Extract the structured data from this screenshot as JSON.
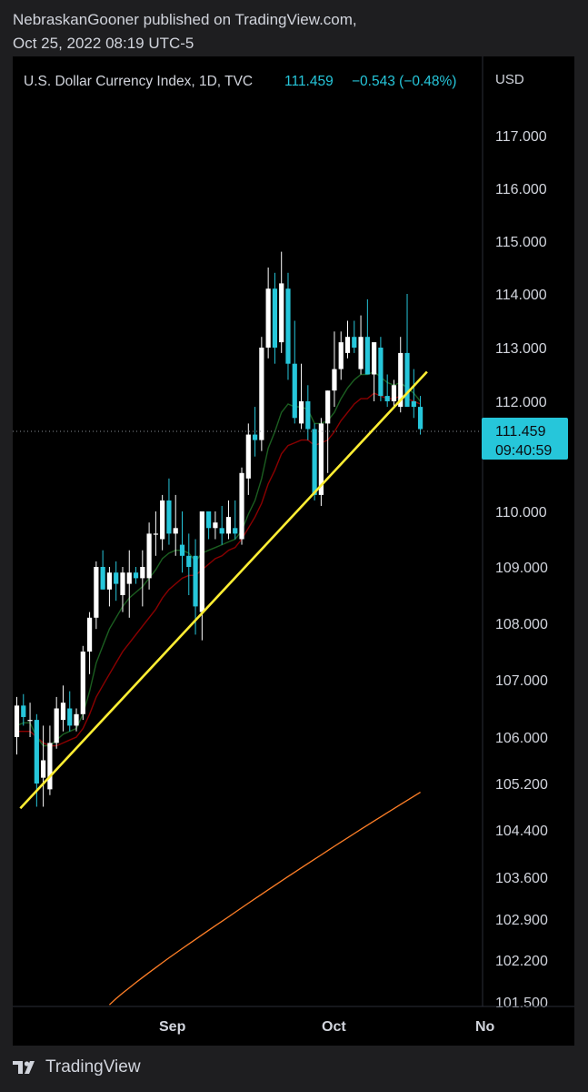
{
  "header": {
    "line1": "NebraskanGooner published on TradingView.com,",
    "line2": "Oct 25, 2022 08:19 UTC-5"
  },
  "footer": {
    "brand": "TradingView",
    "logo_icon": "tradingview-logo-icon"
  },
  "chart_data": {
    "type": "candlestick",
    "title": "U.S. Dollar Currency Index, 1D, TVC",
    "last_price": "111.459",
    "change": "−0.543 (−0.48%)",
    "countdown": "09:40:59",
    "currency": "USD",
    "price_axis_labels": [
      "117.000",
      "116.000",
      "115.000",
      "114.000",
      "113.000",
      "112.000",
      "110.000",
      "109.000",
      "108.000",
      "107.000",
      "106.000",
      "105.200",
      "104.400",
      "103.600",
      "102.900",
      "102.200",
      "101.500"
    ],
    "time_axis_labels": [
      "Sep",
      "Oct",
      "No"
    ],
    "colors": {
      "up": "#ffffff",
      "down": "#26c6da",
      "ema_short": "#1b5e20",
      "ema_long": "#8b0000",
      "ma_200": "#ff7f27",
      "trendline": "#ffee33",
      "price_tag": "#26c6da"
    },
    "candles": [
      {
        "o": 106.0,
        "h": 106.7,
        "l": 105.7,
        "c": 106.55
      },
      {
        "o": 106.55,
        "h": 106.75,
        "l": 106.2,
        "c": 106.35
      },
      {
        "o": 106.3,
        "h": 106.6,
        "l": 106.0,
        "c": 106.3
      },
      {
        "o": 106.3,
        "h": 106.4,
        "l": 104.8,
        "c": 105.2
      },
      {
        "o": 105.3,
        "h": 106.2,
        "l": 104.8,
        "c": 105.6
      },
      {
        "o": 105.1,
        "h": 106.2,
        "l": 105.0,
        "c": 105.9
      },
      {
        "o": 105.9,
        "h": 106.7,
        "l": 105.8,
        "c": 106.5
      },
      {
        "o": 106.3,
        "h": 106.9,
        "l": 106.1,
        "c": 106.6
      },
      {
        "o": 106.5,
        "h": 106.8,
        "l": 106.1,
        "c": 106.2
      },
      {
        "o": 106.2,
        "h": 106.5,
        "l": 106.1,
        "c": 106.4
      },
      {
        "o": 106.4,
        "h": 107.6,
        "l": 106.3,
        "c": 107.5
      },
      {
        "o": 107.5,
        "h": 108.2,
        "l": 107.1,
        "c": 108.1
      },
      {
        "o": 108.1,
        "h": 109.1,
        "l": 107.9,
        "c": 109.0
      },
      {
        "o": 109.0,
        "h": 109.3,
        "l": 108.6,
        "c": 108.6
      },
      {
        "o": 108.6,
        "h": 109.0,
        "l": 108.3,
        "c": 108.9
      },
      {
        "o": 108.9,
        "h": 109.1,
        "l": 108.4,
        "c": 108.7
      },
      {
        "o": 108.5,
        "h": 109.0,
        "l": 108.2,
        "c": 108.9
      },
      {
        "o": 108.7,
        "h": 109.3,
        "l": 108.1,
        "c": 108.9
      },
      {
        "o": 108.9,
        "h": 109.0,
        "l": 108.7,
        "c": 108.8
      },
      {
        "o": 108.8,
        "h": 109.3,
        "l": 108.3,
        "c": 109.0
      },
      {
        "o": 108.8,
        "h": 109.8,
        "l": 108.6,
        "c": 109.6
      },
      {
        "o": 109.6,
        "h": 110.0,
        "l": 109.2,
        "c": 109.6
      },
      {
        "o": 109.5,
        "h": 110.3,
        "l": 109.3,
        "c": 110.2
      },
      {
        "o": 110.2,
        "h": 110.6,
        "l": 109.4,
        "c": 109.6
      },
      {
        "o": 109.6,
        "h": 110.3,
        "l": 109.2,
        "c": 109.7
      },
      {
        "o": 109.4,
        "h": 110.0,
        "l": 108.9,
        "c": 109.2
      },
      {
        "o": 109.2,
        "h": 109.6,
        "l": 108.5,
        "c": 109.0
      },
      {
        "o": 109.2,
        "h": 109.5,
        "l": 107.8,
        "c": 108.3
      },
      {
        "o": 108.2,
        "h": 110.0,
        "l": 107.7,
        "c": 110.0
      },
      {
        "o": 110.0,
        "h": 110.0,
        "l": 109.5,
        "c": 109.7
      },
      {
        "o": 109.7,
        "h": 110.0,
        "l": 109.5,
        "c": 109.8
      },
      {
        "o": 109.7,
        "h": 110.1,
        "l": 109.4,
        "c": 109.6
      },
      {
        "o": 109.6,
        "h": 110.2,
        "l": 109.5,
        "c": 109.9
      },
      {
        "o": 109.7,
        "h": 110.2,
        "l": 109.5,
        "c": 109.6
      },
      {
        "o": 109.5,
        "h": 110.8,
        "l": 109.4,
        "c": 110.7
      },
      {
        "o": 110.6,
        "h": 111.6,
        "l": 110.3,
        "c": 111.4
      },
      {
        "o": 111.4,
        "h": 111.9,
        "l": 111.0,
        "c": 111.3
      },
      {
        "o": 111.3,
        "h": 113.2,
        "l": 111.1,
        "c": 113.0
      },
      {
        "o": 113.0,
        "h": 114.5,
        "l": 112.8,
        "c": 114.1
      },
      {
        "o": 114.1,
        "h": 114.4,
        "l": 112.7,
        "c": 113.0
      },
      {
        "o": 113.1,
        "h": 114.8,
        "l": 112.9,
        "c": 114.2
      },
      {
        "o": 114.1,
        "h": 114.4,
        "l": 112.4,
        "c": 112.7
      },
      {
        "o": 112.7,
        "h": 113.5,
        "l": 111.6,
        "c": 111.7
      },
      {
        "o": 111.6,
        "h": 112.7,
        "l": 111.5,
        "c": 112.0
      },
      {
        "o": 112.0,
        "h": 112.3,
        "l": 111.3,
        "c": 111.5
      },
      {
        "o": 111.5,
        "h": 111.6,
        "l": 110.2,
        "c": 110.3
      },
      {
        "o": 110.3,
        "h": 111.7,
        "l": 110.1,
        "c": 111.6
      },
      {
        "o": 111.6,
        "h": 112.2,
        "l": 110.7,
        "c": 112.2
      },
      {
        "o": 112.2,
        "h": 113.3,
        "l": 111.9,
        "c": 112.6
      },
      {
        "o": 112.6,
        "h": 113.3,
        "l": 112.4,
        "c": 113.1
      },
      {
        "o": 112.9,
        "h": 113.5,
        "l": 112.8,
        "c": 113.2
      },
      {
        "o": 113.2,
        "h": 113.5,
        "l": 112.9,
        "c": 113.0
      },
      {
        "o": 112.6,
        "h": 113.6,
        "l": 112.5,
        "c": 113.2
      },
      {
        "o": 113.2,
        "h": 113.9,
        "l": 112.5,
        "c": 112.5
      },
      {
        "o": 112.5,
        "h": 113.1,
        "l": 112.0,
        "c": 113.1
      },
      {
        "o": 113.0,
        "h": 113.2,
        "l": 112.0,
        "c": 112.1
      },
      {
        "o": 112.1,
        "h": 112.5,
        "l": 111.9,
        "c": 112.0
      },
      {
        "o": 112.0,
        "h": 112.4,
        "l": 111.9,
        "c": 112.3
      },
      {
        "o": 111.9,
        "h": 113.2,
        "l": 111.8,
        "c": 112.9
      },
      {
        "o": 112.9,
        "h": 114.0,
        "l": 112.0,
        "c": 111.9
      },
      {
        "o": 112.0,
        "h": 112.6,
        "l": 111.7,
        "c": 111.9
      },
      {
        "o": 111.9,
        "h": 112.1,
        "l": 111.4,
        "c": 111.5
      }
    ],
    "ema_short": [
      106.2,
      106.25,
      106.25,
      106.0,
      105.85,
      105.85,
      105.95,
      106.05,
      106.1,
      106.15,
      106.4,
      106.8,
      107.3,
      107.6,
      107.9,
      108.1,
      108.3,
      108.45,
      108.55,
      108.65,
      108.8,
      108.95,
      109.15,
      109.25,
      109.3,
      109.3,
      109.25,
      109.1,
      109.25,
      109.3,
      109.35,
      109.4,
      109.45,
      109.5,
      109.65,
      109.95,
      110.2,
      110.6,
      111.15,
      111.45,
      111.8,
      111.95,
      111.9,
      111.9,
      111.85,
      111.6,
      111.6,
      111.65,
      111.8,
      112.05,
      112.25,
      112.4,
      112.5,
      112.5,
      112.55,
      112.45,
      112.35,
      112.3,
      112.35,
      112.25,
      112.15,
      112.0
    ],
    "ema_long": [
      106.1,
      106.1,
      106.1,
      106.0,
      105.9,
      105.85,
      105.85,
      105.9,
      105.95,
      106.0,
      106.15,
      106.4,
      106.7,
      106.9,
      107.1,
      107.3,
      107.5,
      107.65,
      107.8,
      107.95,
      108.1,
      108.25,
      108.45,
      108.6,
      108.7,
      108.8,
      108.85,
      108.85,
      108.95,
      109.05,
      109.15,
      109.2,
      109.3,
      109.35,
      109.5,
      109.7,
      109.9,
      110.15,
      110.5,
      110.75,
      111.05,
      111.2,
      111.25,
      111.3,
      111.3,
      111.2,
      111.25,
      111.3,
      111.45,
      111.65,
      111.8,
      111.95,
      112.05,
      112.05,
      112.15,
      112.1,
      112.05,
      112.05,
      112.1,
      112.05,
      112.0,
      111.95
    ],
    "ma_200": {
      "from_index": 14,
      "start": 101.45,
      "end": 105.05
    },
    "trendline": {
      "from_index": 3,
      "from_value": 104.93,
      "to_index": 62,
      "to_value": 112.55
    }
  }
}
